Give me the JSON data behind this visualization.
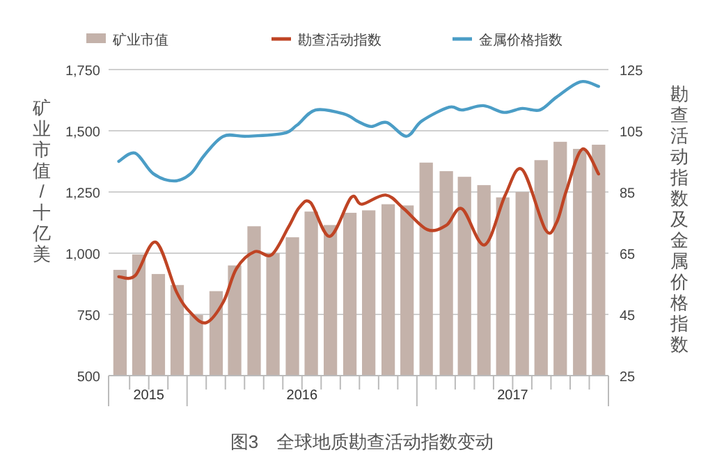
{
  "chart_data": {
    "type": "bar",
    "x": [
      "2015-09-16",
      "2015-10-16",
      "2015-11-16",
      "2015-12-16",
      "2016-01-16",
      "2016-02-16",
      "2016-03-16",
      "2016-04-16",
      "2016-05-16",
      "2016-06-16",
      "2016-07-16",
      "2016-08-16",
      "2016-09-16",
      "2016-10-16",
      "2016-11-16",
      "2016-12-16",
      "2017-01-16",
      "2017-02-16",
      "2017-03-16",
      "2017-04-16",
      "2017-05-16",
      "2017-06-16",
      "2017-07-16",
      "2017-08-16",
      "2017-09-16",
      "2017-10-16"
    ],
    "series": [
      {
        "name": "矿业市值",
        "color": "#c4b2aa",
        "values": [
          932,
          995,
          915,
          870,
          748,
          845,
          950,
          1110,
          1000,
          1065,
          1170,
          1115,
          1165,
          1175,
          1200,
          1195,
          1370,
          1335,
          1312,
          1278,
          1228,
          1250,
          1380,
          1455,
          1426,
          1443
        ]
      },
      {
        "name": "勘查活动指数",
        "type": "line",
        "axis": "y2",
        "color": "#bf4424",
        "x": [
          "2015-09-14",
          "2015-10-10",
          "2015-11-12",
          "2015-12-15",
          "2016-01-07",
          "2016-02-01",
          "2016-02-27",
          "2016-03-19",
          "2016-04-17",
          "2016-05-14",
          "2016-06-10",
          "2016-06-27",
          "2016-07-15",
          "2016-08-15",
          "2016-09-18",
          "2016-10-05",
          "2016-11-12",
          "2016-12-11",
          "2017-01-18",
          "2017-02-16",
          "2017-03-12",
          "2017-04-17",
          "2017-05-20",
          "2017-06-16",
          "2017-07-23",
          "2017-08-10",
          "2017-08-26",
          "2017-09-20",
          "2017-10-16"
        ],
        "values": [
          57.3,
          57.7,
          68.6,
          52.3,
          45.5,
          42.3,
          49.1,
          60,
          65.5,
          64.5,
          73.6,
          80,
          81.5,
          70.5,
          83.2,
          81,
          84,
          79.5,
          72.7,
          74.1,
          79.5,
          67.7,
          84,
          92.3,
          72.7,
          75,
          85.5,
          99,
          90.9
        ]
      },
      {
        "name": "金属价格指数",
        "type": "line",
        "axis": "y2",
        "color": "#4b9dc6",
        "x": [
          "2015-09-14",
          "2015-10-10",
          "2015-11-08",
          "2015-12-11",
          "2016-01-07",
          "2016-01-29",
          "2016-02-27",
          "2016-04-04",
          "2016-06-01",
          "2016-06-23",
          "2016-07-23",
          "2016-09-07",
          "2016-09-29",
          "2016-10-20",
          "2016-11-14",
          "2016-12-15",
          "2017-01-09",
          "2017-02-20",
          "2017-03-12",
          "2017-04-15",
          "2017-05-18",
          "2017-06-16",
          "2017-07-14",
          "2017-08-10",
          "2017-09-17",
          "2017-10-16"
        ],
        "values": [
          95,
          97.7,
          91,
          88.6,
          91,
          97,
          103.2,
          103.2,
          104.1,
          106.8,
          111.8,
          110.5,
          108,
          106.4,
          107.7,
          103.2,
          108.2,
          112.7,
          111.8,
          113.2,
          111,
          112.3,
          111.8,
          116,
          121,
          119.5
        ]
      }
    ],
    "xlim": [
      "2015-08-29",
      "2017-11-01"
    ],
    "xticks": [
      {
        "value": "2015-11-01",
        "label": "2015"
      },
      {
        "value": "2016-07-01",
        "label": "2016"
      },
      {
        "value": "2017-06-01",
        "label": "2017"
      },
      {
        "value": "2015-10",
        "label": null
      },
      {
        "value": "2015-11",
        "label": null
      },
      {
        "value": "2015-12",
        "label": null
      },
      {
        "value": "2016-01",
        "label": null
      },
      {
        "value": "2016-02",
        "label": null
      },
      {
        "value": "2016-03",
        "label": null
      },
      {
        "value": "2016-04",
        "label": null
      },
      {
        "value": "2016-05",
        "label": null
      },
      {
        "value": "2016-06",
        "label": null
      },
      {
        "value": "2016-07",
        "label": null
      },
      {
        "value": "2016-08",
        "label": null
      },
      {
        "value": "2016-09",
        "label": null
      },
      {
        "value": "2016-10",
        "label": null
      },
      {
        "value": "2016-11",
        "label": null
      },
      {
        "value": "2016-12",
        "label": null
      },
      {
        "value": "2017-01",
        "label": null
      },
      {
        "value": "2017-02",
        "label": null
      },
      {
        "value": "2017-03",
        "label": null
      },
      {
        "value": "2017-04",
        "label": null
      },
      {
        "value": "2017-05",
        "label": null
      },
      {
        "value": "2017-06",
        "label": null
      },
      {
        "value": "2017-07",
        "label": null
      },
      {
        "value": "2017-08",
        "label": null
      },
      {
        "value": "2017-09",
        "label": null
      },
      {
        "value": "2017-10",
        "label": null
      }
    ],
    "ylim": [
      500,
      1750
    ],
    "yticks": [
      {
        "value": 500,
        "label": "500"
      },
      {
        "value": 750,
        "label": "750"
      },
      {
        "value": 1000,
        "label": "1,000"
      },
      {
        "value": 1250,
        "label": "1,250"
      },
      {
        "value": 1500,
        "label": "1,500"
      },
      {
        "value": 1750,
        "label": "1,750"
      }
    ],
    "y2lim": [
      25,
      125
    ],
    "y2ticks": [
      25,
      45,
      65,
      85,
      105,
      125
    ],
    "ylabel": "矿业市值/十亿美",
    "y2label": "勘查活动指数及金属价格指数",
    "grid": "y",
    "legend": "top",
    "annotations": [
      "图3　全球地质勘查活动指数变动"
    ]
  }
}
